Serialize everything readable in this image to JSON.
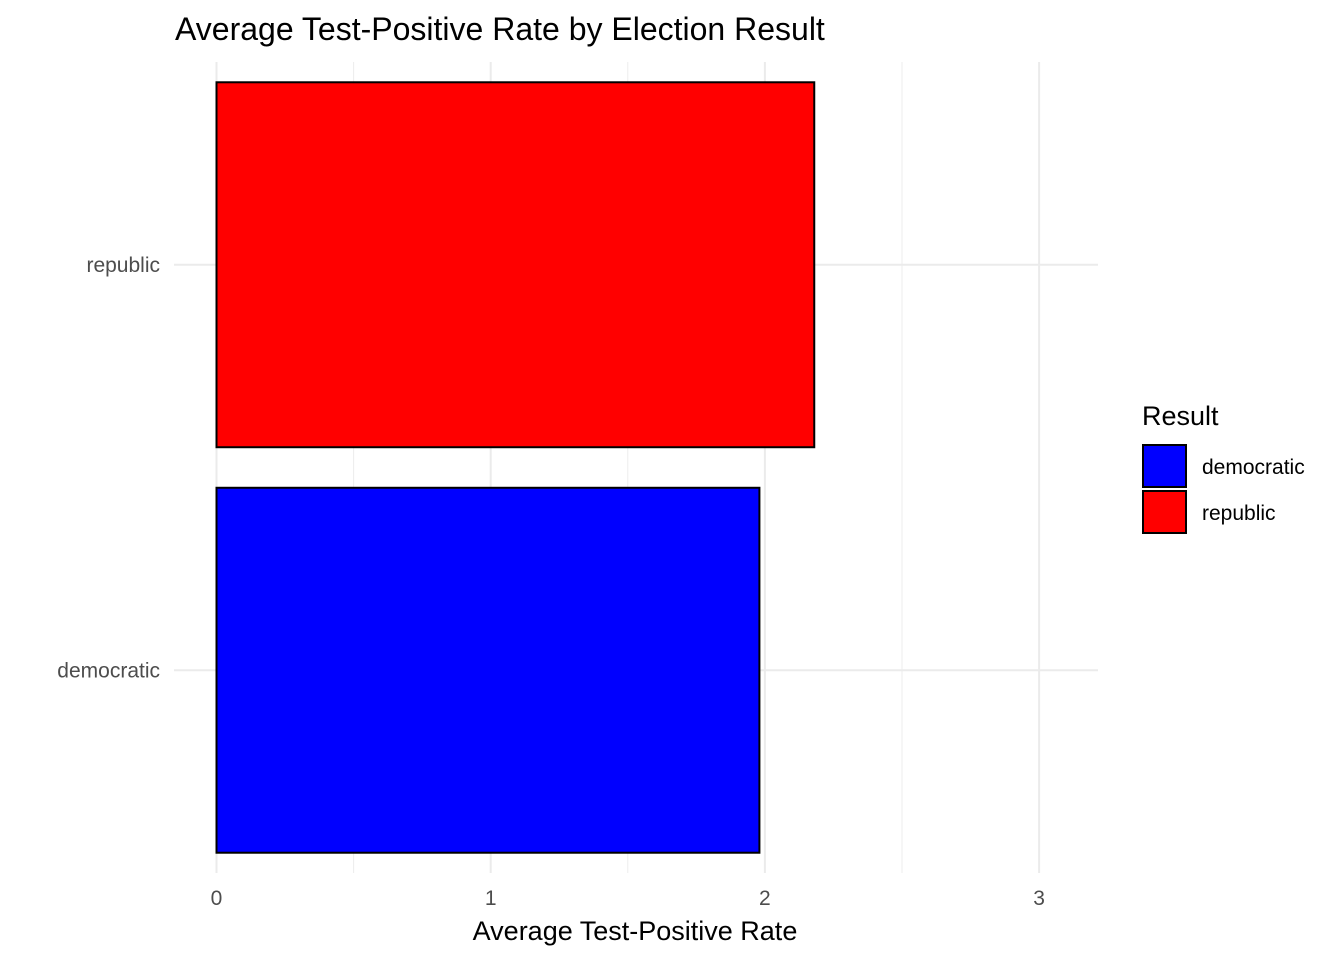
{
  "chart_data": {
    "type": "bar",
    "orientation": "horizontal",
    "title": "Average Test-Positive Rate by Election Result",
    "xlabel": "Average Test-Positive Rate",
    "ylabel": "",
    "categories": [
      "democratic",
      "republic"
    ],
    "values": [
      1.98,
      2.18
    ],
    "colors": [
      "#0000ff",
      "#ff0000"
    ],
    "bar_outline_color": "#000000",
    "xlim": [
      0,
      3.2
    ],
    "x_ticks": [
      "0",
      "1",
      "2",
      "3"
    ],
    "grid": true,
    "legend": {
      "title": "Result",
      "placement": "right",
      "entries": [
        {
          "label": "democratic",
          "color": "#0000ff"
        },
        {
          "label": "republic",
          "color": "#ff0000"
        }
      ]
    }
  }
}
